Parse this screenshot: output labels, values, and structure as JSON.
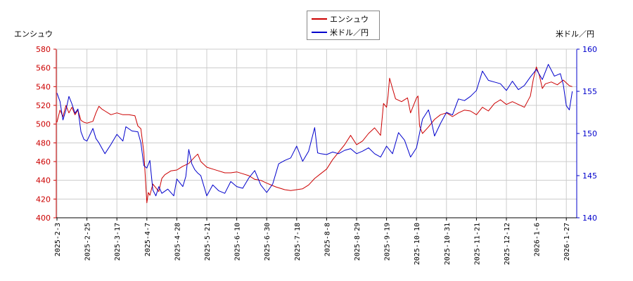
{
  "chart_data": {
    "type": "line",
    "title": "",
    "legend_position": "top-center",
    "grid": true,
    "x_tick_labels": [
      "2025-2-3",
      "2025-2-25",
      "2025-3-17",
      "2025-4-7",
      "2025-4-28",
      "2025-5-21",
      "2025-6-10",
      "2025-6-30",
      "2025-7-18",
      "2025-8-8",
      "2025-8-29",
      "2025-9-19",
      "2025-10-10",
      "2025-10-31",
      "2025-11-21",
      "2025-12-12",
      "2026-1-6",
      "2026-1-27"
    ],
    "left_axis": {
      "label": "エンシュウ",
      "ylim": [
        400,
        580
      ],
      "ticks": [
        400,
        420,
        440,
        460,
        480,
        500,
        520,
        540,
        560,
        580
      ],
      "color": "#cc0000"
    },
    "right_axis": {
      "label": "米ドル／円",
      "ylim": [
        140,
        160
      ],
      "ticks": [
        140,
        145,
        150,
        155,
        160
      ],
      "color": "#0000cc"
    },
    "series": [
      {
        "name": "エンシュウ",
        "axis": "left",
        "color": "#cc0000",
        "points": [
          [
            0,
            502
          ],
          [
            0.1,
            515
          ],
          [
            0.2,
            508
          ],
          [
            0.3,
            520
          ],
          [
            0.4,
            512
          ],
          [
            0.5,
            518
          ],
          [
            0.6,
            510
          ],
          [
            0.7,
            515
          ],
          [
            0.8,
            504
          ],
          [
            0.9,
            502
          ],
          [
            1,
            501
          ],
          [
            1.2,
            503
          ],
          [
            1.3,
            512
          ],
          [
            1.4,
            519
          ],
          [
            1.5,
            516
          ],
          [
            1.6,
            514
          ],
          [
            1.8,
            510
          ],
          [
            2,
            512
          ],
          [
            2.2,
            510
          ],
          [
            2.4,
            510
          ],
          [
            2.6,
            509
          ],
          [
            2.7,
            498
          ],
          [
            2.8,
            495
          ],
          [
            2.9,
            470
          ],
          [
            3,
            416
          ],
          [
            3.05,
            427
          ],
          [
            3.1,
            424
          ],
          [
            3.2,
            436
          ],
          [
            3.3,
            432
          ],
          [
            3.4,
            428
          ],
          [
            3.5,
            442
          ],
          [
            3.6,
            446
          ],
          [
            3.8,
            450
          ],
          [
            4,
            451
          ],
          [
            4.2,
            455
          ],
          [
            4.4,
            458
          ],
          [
            4.6,
            465
          ],
          [
            4.7,
            468
          ],
          [
            4.8,
            460
          ],
          [
            5,
            454
          ],
          [
            5.2,
            452
          ],
          [
            5.4,
            450
          ],
          [
            5.6,
            448
          ],
          [
            5.8,
            448
          ],
          [
            6,
            449
          ],
          [
            6.2,
            447
          ],
          [
            6.4,
            445
          ],
          [
            6.6,
            441
          ],
          [
            6.8,
            440
          ],
          [
            7,
            437
          ],
          [
            7.3,
            433
          ],
          [
            7.6,
            430
          ],
          [
            7.8,
            429
          ],
          [
            8,
            430
          ],
          [
            8.2,
            431
          ],
          [
            8.4,
            435
          ],
          [
            8.6,
            442
          ],
          [
            8.8,
            447
          ],
          [
            9,
            452
          ],
          [
            9.2,
            462
          ],
          [
            9.4,
            470
          ],
          [
            9.6,
            478
          ],
          [
            9.8,
            488
          ],
          [
            10,
            478
          ],
          [
            10.2,
            482
          ],
          [
            10.4,
            490
          ],
          [
            10.6,
            496
          ],
          [
            10.8,
            488
          ],
          [
            10.9,
            522
          ],
          [
            11,
            518
          ],
          [
            11.05,
            530
          ],
          [
            11.1,
            549
          ],
          [
            11.2,
            538
          ],
          [
            11.3,
            527
          ],
          [
            11.5,
            524
          ],
          [
            11.7,
            528
          ],
          [
            11.8,
            512
          ],
          [
            12,
            528
          ],
          [
            12.05,
            530
          ],
          [
            12.1,
            498
          ],
          [
            12.2,
            490
          ],
          [
            12.4,
            497
          ],
          [
            12.6,
            505
          ],
          [
            12.8,
            510
          ],
          [
            13,
            512
          ],
          [
            13.2,
            508
          ],
          [
            13.4,
            512
          ],
          [
            13.6,
            515
          ],
          [
            13.8,
            514
          ],
          [
            14,
            510
          ],
          [
            14.2,
            518
          ],
          [
            14.4,
            514
          ],
          [
            14.6,
            522
          ],
          [
            14.8,
            526
          ],
          [
            15,
            521
          ],
          [
            15.2,
            524
          ],
          [
            15.4,
            521
          ],
          [
            15.6,
            518
          ],
          [
            15.8,
            530
          ],
          [
            15.9,
            548
          ],
          [
            16,
            561
          ],
          [
            16.1,
            552
          ],
          [
            16.2,
            538
          ],
          [
            16.3,
            543
          ],
          [
            16.5,
            545
          ],
          [
            16.7,
            542
          ],
          [
            16.9,
            547
          ],
          [
            17,
            544
          ],
          [
            17.1,
            541
          ],
          [
            17.2,
            540
          ]
        ]
      },
      {
        "name": "米ドル／円",
        "axis": "right",
        "color": "#0000cc",
        "points": [
          [
            0,
            154.8
          ],
          [
            0.1,
            153.8
          ],
          [
            0.2,
            151.6
          ],
          [
            0.3,
            152.8
          ],
          [
            0.4,
            154.4
          ],
          [
            0.5,
            153.5
          ],
          [
            0.6,
            152.4
          ],
          [
            0.7,
            152.9
          ],
          [
            0.8,
            150.2
          ],
          [
            0.9,
            149.3
          ],
          [
            1,
            149.1
          ],
          [
            1.2,
            150.6
          ],
          [
            1.3,
            149.4
          ],
          [
            1.4,
            148.9
          ],
          [
            1.6,
            147.6
          ],
          [
            1.8,
            148.7
          ],
          [
            2,
            149.9
          ],
          [
            2.2,
            149.1
          ],
          [
            2.3,
            150.8
          ],
          [
            2.5,
            150.3
          ],
          [
            2.7,
            150.2
          ],
          [
            2.8,
            148.9
          ],
          [
            2.9,
            146.2
          ],
          [
            3,
            145.9
          ],
          [
            3.1,
            146.8
          ],
          [
            3.2,
            143.3
          ],
          [
            3.3,
            142.6
          ],
          [
            3.4,
            143.7
          ],
          [
            3.5,
            142.9
          ],
          [
            3.7,
            143.4
          ],
          [
            3.9,
            142.6
          ],
          [
            4,
            144.6
          ],
          [
            4.2,
            143.7
          ],
          [
            4.3,
            144.9
          ],
          [
            4.4,
            148.1
          ],
          [
            4.5,
            146.4
          ],
          [
            4.6,
            145.7
          ],
          [
            4.7,
            145.3
          ],
          [
            4.8,
            145.0
          ],
          [
            5,
            142.6
          ],
          [
            5.2,
            143.9
          ],
          [
            5.4,
            143.2
          ],
          [
            5.6,
            142.9
          ],
          [
            5.8,
            144.3
          ],
          [
            6,
            143.7
          ],
          [
            6.2,
            143.5
          ],
          [
            6.4,
            144.7
          ],
          [
            6.6,
            145.6
          ],
          [
            6.8,
            143.9
          ],
          [
            7,
            143.0
          ],
          [
            7.2,
            144.0
          ],
          [
            7.4,
            146.4
          ],
          [
            7.6,
            146.8
          ],
          [
            7.8,
            147.1
          ],
          [
            8,
            148.5
          ],
          [
            8.2,
            146.7
          ],
          [
            8.4,
            147.9
          ],
          [
            8.6,
            150.7
          ],
          [
            8.7,
            147.7
          ],
          [
            8.8,
            147.6
          ],
          [
            9,
            147.5
          ],
          [
            9.2,
            147.8
          ],
          [
            9.4,
            147.6
          ],
          [
            9.6,
            148.0
          ],
          [
            9.8,
            148.2
          ],
          [
            10,
            147.6
          ],
          [
            10.2,
            147.9
          ],
          [
            10.4,
            148.3
          ],
          [
            10.6,
            147.6
          ],
          [
            10.8,
            147.2
          ],
          [
            11,
            148.5
          ],
          [
            11.2,
            147.6
          ],
          [
            11.4,
            150.1
          ],
          [
            11.6,
            149.2
          ],
          [
            11.8,
            147.2
          ],
          [
            12,
            148.3
          ],
          [
            12.2,
            151.7
          ],
          [
            12.4,
            152.8
          ],
          [
            12.5,
            151.4
          ],
          [
            12.6,
            149.7
          ],
          [
            12.8,
            151.2
          ],
          [
            13,
            152.5
          ],
          [
            13.2,
            152.2
          ],
          [
            13.4,
            154.1
          ],
          [
            13.6,
            153.9
          ],
          [
            13.8,
            154.4
          ],
          [
            14,
            155.1
          ],
          [
            14.2,
            157.4
          ],
          [
            14.4,
            156.3
          ],
          [
            14.6,
            156.1
          ],
          [
            14.8,
            155.9
          ],
          [
            15,
            155.1
          ],
          [
            15.2,
            156.2
          ],
          [
            15.4,
            155.2
          ],
          [
            15.6,
            155.7
          ],
          [
            15.8,
            156.7
          ],
          [
            16,
            157.6
          ],
          [
            16.2,
            156.4
          ],
          [
            16.4,
            158.2
          ],
          [
            16.6,
            156.8
          ],
          [
            16.8,
            157.1
          ],
          [
            16.9,
            155.8
          ],
          [
            17,
            153.3
          ],
          [
            17.1,
            152.8
          ],
          [
            17.2,
            155.0
          ]
        ]
      }
    ]
  }
}
